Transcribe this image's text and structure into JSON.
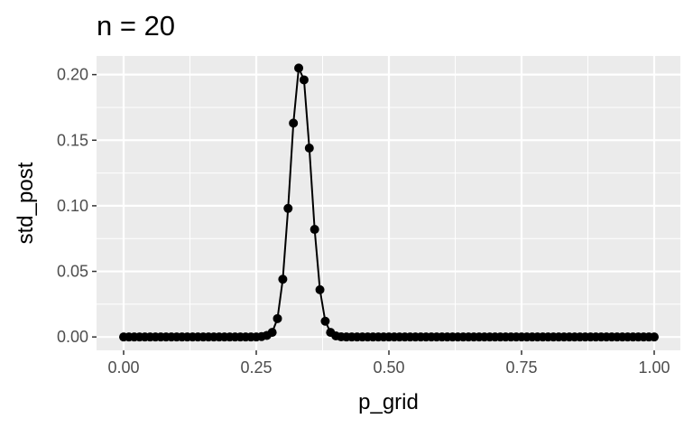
{
  "chart_data": {
    "type": "line",
    "title": "n = 20",
    "xlabel": "p_grid",
    "ylabel": "std_post",
    "xlim": [
      0,
      1
    ],
    "ylim": [
      -0.0102,
      0.2142
    ],
    "xticks": [
      0,
      0.25,
      0.5,
      0.75,
      1
    ],
    "xtick_labels": [
      "0.00",
      "0.25",
      "0.50",
      "0.75",
      "1.00"
    ],
    "yticks": [
      0,
      0.05,
      0.1,
      0.15,
      0.2
    ],
    "ytick_labels": [
      "0.00",
      "0.05",
      "0.10",
      "0.15",
      "0.20"
    ],
    "grid": true,
    "background": "#ebebeb",
    "line_color": "#000000",
    "point_color": "#000000",
    "x": [
      0.0,
      0.01,
      0.02,
      0.03,
      0.04,
      0.05,
      0.06,
      0.07,
      0.08,
      0.09,
      0.1,
      0.11,
      0.12,
      0.13,
      0.14,
      0.15,
      0.16,
      0.17,
      0.18,
      0.19,
      0.2,
      0.21,
      0.22,
      0.23,
      0.24,
      0.25,
      0.26,
      0.27,
      0.28,
      0.29,
      0.3,
      0.31,
      0.32,
      0.33,
      0.34,
      0.35,
      0.36,
      0.37,
      0.38,
      0.39,
      0.4,
      0.41,
      0.42,
      0.43,
      0.44,
      0.45,
      0.46,
      0.47,
      0.48,
      0.49,
      0.5,
      0.51,
      0.52,
      0.53,
      0.54,
      0.55,
      0.56,
      0.57,
      0.58,
      0.59,
      0.6,
      0.61,
      0.62,
      0.63,
      0.64,
      0.65,
      0.66,
      0.67,
      0.68,
      0.69,
      0.7,
      0.71,
      0.72,
      0.73,
      0.74,
      0.75,
      0.76,
      0.77,
      0.78,
      0.79,
      0.8,
      0.81,
      0.82,
      0.83,
      0.84,
      0.85,
      0.86,
      0.87,
      0.88,
      0.89,
      0.9,
      0.91,
      0.92,
      0.93,
      0.94,
      0.95,
      0.96,
      0.97,
      0.98,
      0.99,
      1.0
    ],
    "y": [
      0,
      0,
      0,
      0,
      0,
      0,
      0,
      0,
      0,
      0,
      0,
      0,
      0,
      0,
      0,
      0,
      0,
      0,
      0,
      0,
      0,
      0,
      0,
      0,
      0,
      0,
      0.0003,
      0.0012,
      0.0035,
      0.014,
      0.044,
      0.098,
      0.163,
      0.205,
      0.196,
      0.144,
      0.082,
      0.036,
      0.012,
      0.0035,
      0.0008,
      0.0001,
      0,
      0,
      0,
      0,
      0,
      0,
      0,
      0,
      0,
      0,
      0,
      0,
      0,
      0,
      0,
      0,
      0,
      0,
      0,
      0,
      0,
      0,
      0,
      0,
      0,
      0,
      0,
      0,
      0,
      0,
      0,
      0,
      0,
      0,
      0,
      0,
      0,
      0,
      0,
      0,
      0,
      0,
      0,
      0,
      0,
      0,
      0,
      0,
      0,
      0,
      0,
      0,
      0,
      0,
      0,
      0,
      0,
      0,
      0
    ]
  }
}
